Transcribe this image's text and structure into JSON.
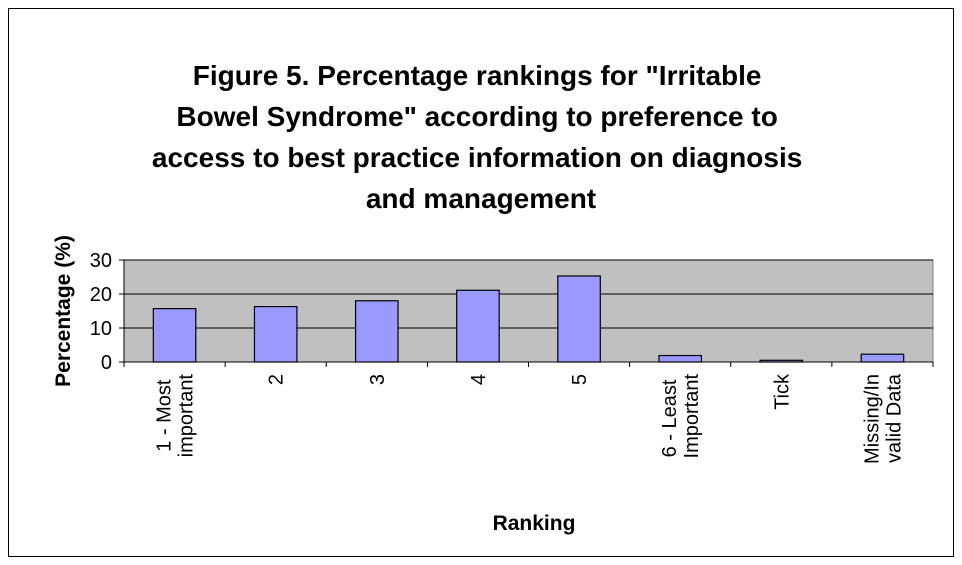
{
  "chart_data": {
    "type": "bar",
    "title": "Figure 5. Percentage rankings for \"Irritable Bowel Syndrome\" according to preference to access to best practice information on diagnosis and management",
    "xlabel": "Ranking",
    "ylabel": "Percentage (%)",
    "categories": [
      "1 - Most important",
      "2",
      "3",
      "4",
      "5",
      "6 - Least Important",
      "Tick",
      "Missing/Invalid Data"
    ],
    "values": [
      15.7,
      16.3,
      18,
      21.1,
      25.3,
      1.9,
      0.5,
      2.3
    ],
    "color": "#9999ff",
    "ylim": [
      0,
      30
    ],
    "yticks": [
      0,
      10,
      20,
      30
    ],
    "grid": true
  }
}
